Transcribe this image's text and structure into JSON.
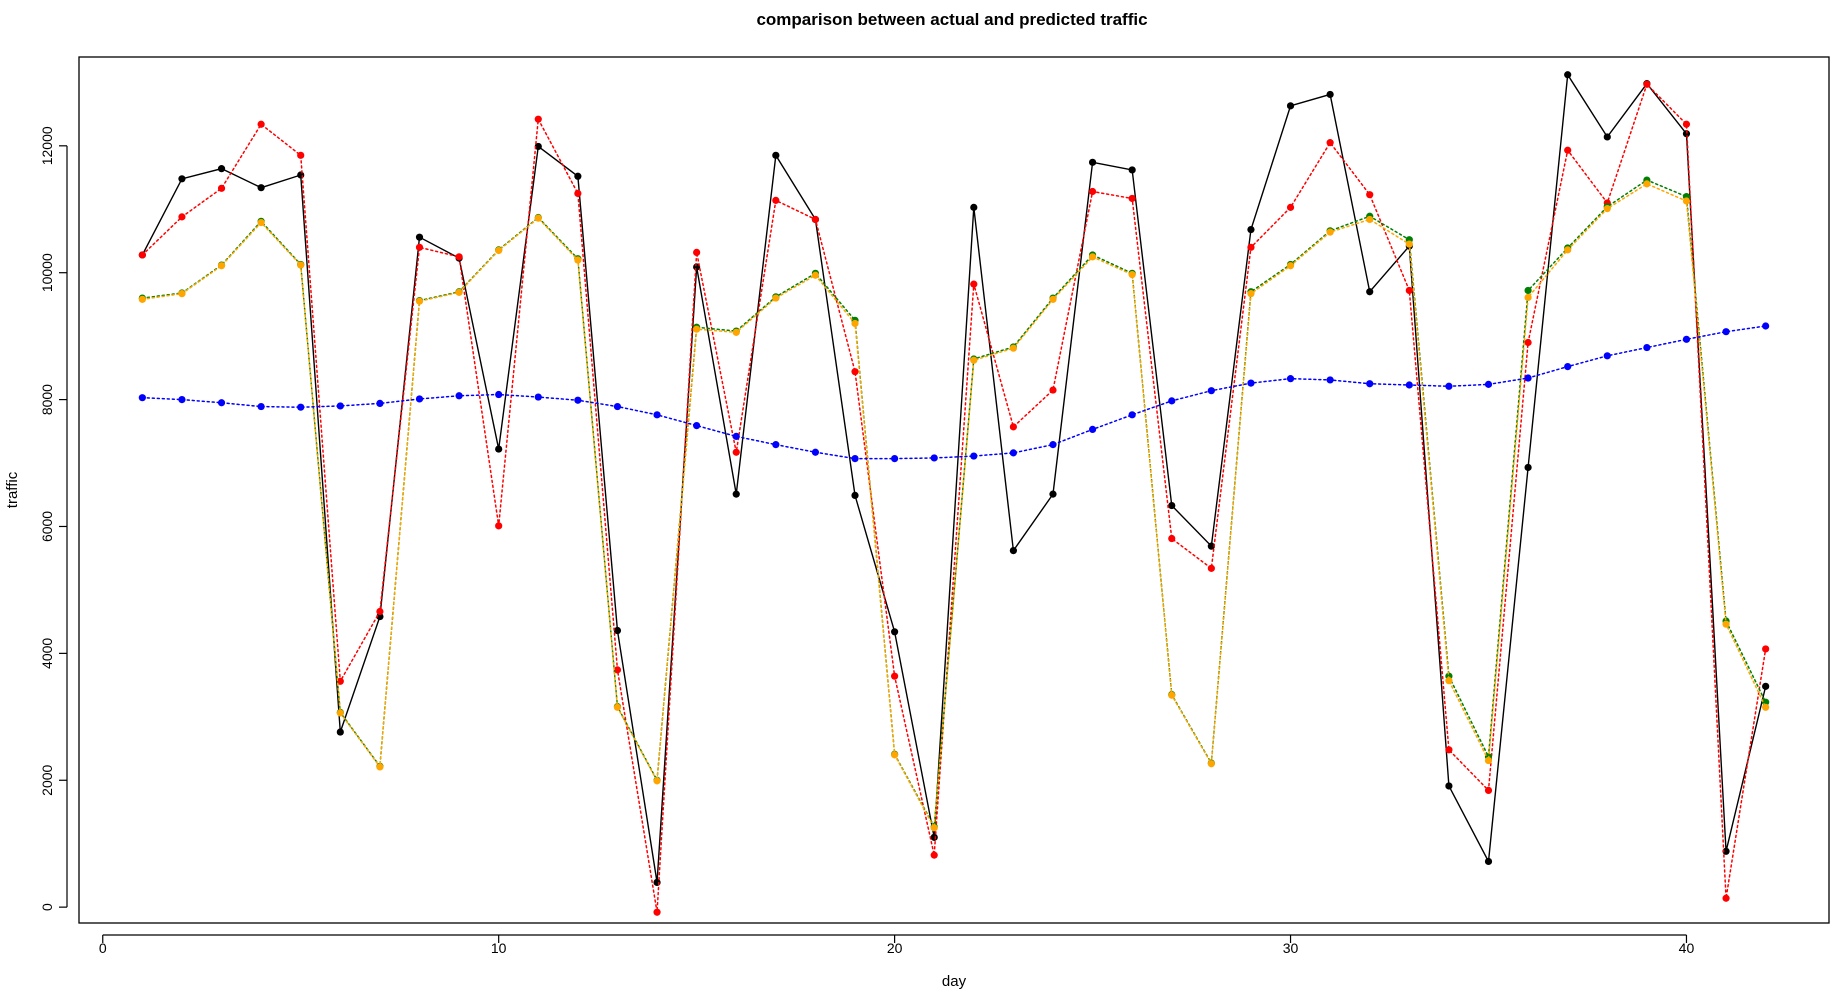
{
  "chart_data": {
    "type": "line",
    "title": "comparison between actual and predicted traffic",
    "xlabel": "day",
    "ylabel": "traffic",
    "xlim": [
      -0.6,
      43.6
    ],
    "ylim": [
      -250,
      13400
    ],
    "grid": false,
    "legend": "",
    "x_ticks": [
      0,
      10,
      20,
      30,
      40
    ],
    "x_tick_labels": [
      "0",
      "10",
      "20",
      "30",
      "40"
    ],
    "y_ticks": [
      0,
      2000,
      4000,
      6000,
      8000,
      10000,
      12000
    ],
    "y_tick_labels": [
      "0",
      "2000",
      "4000",
      "6000",
      "8000",
      "10000",
      "12000"
    ],
    "x": [
      1,
      2,
      3,
      4,
      5,
      6,
      7,
      8,
      9,
      10,
      11,
      12,
      13,
      14,
      15,
      16,
      17,
      18,
      19,
      20,
      21,
      22,
      23,
      24,
      25,
      26,
      27,
      28,
      29,
      30,
      31,
      32,
      33,
      34,
      35,
      36,
      37,
      38,
      39,
      40,
      41,
      42
    ],
    "series": [
      {
        "color": "#000000",
        "line": "solid",
        "values": [
          10280,
          11480,
          11640,
          11340,
          11540,
          2760,
          4580,
          10560,
          10230,
          7220,
          11990,
          11520,
          4360,
          390,
          10090,
          6510,
          11850,
          10840,
          6490,
          4340,
          1100,
          11030,
          5620,
          6510,
          11740,
          11620,
          6330,
          5690,
          10680,
          12630,
          12810,
          9700,
          10420,
          1910,
          720,
          6930,
          13120,
          12140,
          12980,
          12190,
          880,
          3480
        ]
      },
      {
        "color": "#ff0000",
        "line": "dotted",
        "values": [
          10280,
          10880,
          11330,
          12340,
          11850,
          3560,
          4660,
          10400,
          10250,
          6010,
          12420,
          11250,
          3740,
          -80,
          10320,
          7170,
          11140,
          10840,
          8440,
          3640,
          820,
          9820,
          7570,
          8150,
          11280,
          11170,
          5810,
          5340,
          10400,
          11030,
          12050,
          11230,
          9720,
          2480,
          1840,
          8900,
          11930,
          11100,
          12970,
          12340,
          140,
          4070
        ]
      },
      {
        "color": "#008000",
        "line": "dotted",
        "values": [
          9600,
          9680,
          10120,
          10810,
          10130,
          3070,
          2220,
          9560,
          9700,
          10360,
          10870,
          10220,
          3160,
          2000,
          9140,
          9080,
          9620,
          9990,
          9250,
          2410,
          1270,
          8640,
          8830,
          9600,
          10280,
          9990,
          3350,
          2270,
          9700,
          10130,
          10660,
          10890,
          10520,
          3640,
          2370,
          9720,
          10390,
          11040,
          11460,
          11200,
          4510,
          3230
        ]
      },
      {
        "color": "#ffa500",
        "line": "dotted",
        "values": [
          9580,
          9670,
          10110,
          10790,
          10120,
          3060,
          2210,
          9550,
          9690,
          10350,
          10860,
          10200,
          3150,
          1990,
          9110,
          9060,
          9600,
          9960,
          9200,
          2400,
          1250,
          8620,
          8810,
          9580,
          10250,
          9970,
          3340,
          2260,
          9670,
          10110,
          10640,
          10840,
          10450,
          3570,
          2310,
          9610,
          10360,
          11010,
          11400,
          11130,
          4460,
          3150
        ]
      },
      {
        "color": "#0000ff",
        "line": "dotted",
        "values": [
          8030,
          8000,
          7950,
          7890,
          7880,
          7900,
          7940,
          8010,
          8060,
          8080,
          8040,
          7990,
          7890,
          7760,
          7590,
          7420,
          7290,
          7170,
          7070,
          7070,
          7080,
          7110,
          7160,
          7290,
          7530,
          7760,
          7980,
          8140,
          8260,
          8330,
          8310,
          8250,
          8230,
          8210,
          8240,
          8340,
          8520,
          8690,
          8820,
          8950,
          9070,
          9160
        ]
      }
    ]
  }
}
